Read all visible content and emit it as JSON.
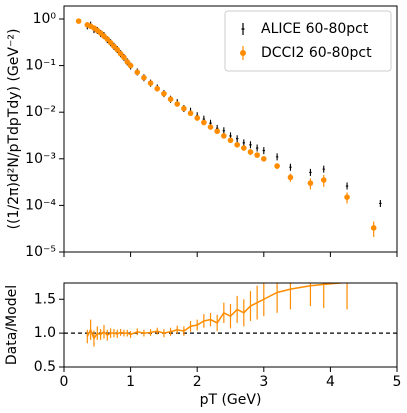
{
  "chart_data": [
    {
      "type": "scatter",
      "ylabel": "((1/2π)d²N/pTdpTdy) (GeV⁻²)",
      "log_y": true,
      "legend": "upper right",
      "xlim": [
        0,
        5
      ],
      "xticks": [
        0,
        1,
        2,
        3,
        4,
        5
      ],
      "ylim": [
        1e-05,
        1.9
      ],
      "yticks": [
        {
          "value": 1e-05,
          "label": "10⁻⁵"
        },
        {
          "value": 0.0001,
          "label": "10⁻⁴"
        },
        {
          "value": 0.001,
          "label": "10⁻³"
        },
        {
          "value": 0.01,
          "label": "10⁻²"
        },
        {
          "value": 0.1,
          "label": "10⁻¹"
        },
        {
          "value": 1,
          "label": "10⁰"
        }
      ],
      "series": [
        {
          "name": "ALICE 60-80pct",
          "color": "#000000",
          "marker": "errorbar",
          "x": [
            0.35,
            0.4,
            0.45,
            0.5,
            0.55,
            0.6,
            0.65,
            0.7,
            0.75,
            0.8,
            0.85,
            0.9,
            0.95,
            1.0,
            1.1,
            1.2,
            1.3,
            1.4,
            1.5,
            1.6,
            1.7,
            1.8,
            1.9,
            2.0,
            2.1,
            2.2,
            2.3,
            2.4,
            2.5,
            2.6,
            2.7,
            2.8,
            2.9,
            3.0,
            3.2,
            3.4,
            3.7,
            3.9,
            4.25,
            4.75
          ],
          "values": [
            0.71,
            0.74,
            0.59,
            0.57,
            0.49,
            0.44,
            0.36,
            0.31,
            0.26,
            0.22,
            0.18,
            0.15,
            0.12,
            0.098,
            0.073,
            0.055,
            0.042,
            0.033,
            0.025,
            0.019,
            0.016,
            0.012,
            0.0105,
            0.0084,
            0.0071,
            0.0058,
            0.0045,
            0.004,
            0.0031,
            0.0027,
            0.0022,
            0.002,
            0.0017,
            0.0015,
            0.0011,
            0.00066,
            0.00051,
            0.0006,
            0.00026,
            0.00011
          ]
        },
        {
          "name": "DCCI2 60-80pct",
          "color": "#ff8c00",
          "marker": "circle",
          "x": [
            0.22,
            0.35,
            0.4,
            0.45,
            0.5,
            0.55,
            0.6,
            0.65,
            0.7,
            0.75,
            0.8,
            0.85,
            0.9,
            0.95,
            1.0,
            1.1,
            1.2,
            1.3,
            1.4,
            1.5,
            1.6,
            1.7,
            1.8,
            1.9,
            2.0,
            2.1,
            2.2,
            2.3,
            2.4,
            2.5,
            2.6,
            2.7,
            2.8,
            2.9,
            3.0,
            3.2,
            3.4,
            3.7,
            3.9,
            4.25,
            4.65
          ],
          "values": [
            0.9,
            0.75,
            0.7,
            0.64,
            0.57,
            0.5,
            0.43,
            0.37,
            0.31,
            0.26,
            0.22,
            0.18,
            0.15,
            0.12,
            0.1,
            0.072,
            0.055,
            0.042,
            0.032,
            0.025,
            0.019,
            0.015,
            0.012,
            0.0095,
            0.0075,
            0.006,
            0.0048,
            0.0039,
            0.0031,
            0.0025,
            0.002,
            0.0017,
            0.0014,
            0.0012,
            0.001,
            0.0007,
            0.0004,
            0.0003,
            0.00035,
            0.00015,
            3.3e-05
          ],
          "errors": [
            0.1,
            0.05,
            0.04,
            0.03,
            0.03,
            0.02,
            0.02,
            0.02,
            0.01,
            0.01,
            0.01,
            0.01,
            0.01,
            0.01,
            0.005,
            0.004,
            0.003,
            0.002,
            0.002,
            0.002,
            0.001,
            0.001,
            0.001,
            0.001,
            0.0008,
            0.0006,
            0.0005,
            0.0004,
            0.0003,
            0.0003,
            0.0002,
            0.0002,
            0.0002,
            0.0001,
            0.0001,
            0.0001,
            8e-05,
            8e-05,
            0.0001,
            4e-05,
            1.2e-05
          ]
        }
      ]
    },
    {
      "type": "line",
      "ylabel": "Data/Model",
      "xlabel": "pT (GeV)",
      "xlim": [
        0,
        5
      ],
      "xticks": [
        0,
        1,
        2,
        3,
        4,
        5
      ],
      "ylim": [
        0.5,
        1.74
      ],
      "yticks": [
        0.5,
        {
          "value": 1,
          "label": "1.0"
        },
        1.5
      ],
      "reference_line": 1,
      "series": [
        {
          "color": "#ff8c00",
          "x": [
            0.35,
            0.4,
            0.45,
            0.5,
            0.55,
            0.6,
            0.65,
            0.7,
            0.75,
            0.8,
            0.85,
            0.9,
            0.95,
            1.0,
            1.1,
            1.2,
            1.3,
            1.4,
            1.5,
            1.6,
            1.7,
            1.8,
            1.9,
            2.0,
            2.1,
            2.2,
            2.3,
            2.4,
            2.5,
            2.6,
            2.7,
            2.8,
            2.9,
            3.0,
            3.2,
            3.4,
            3.7,
            3.9,
            4.25
          ],
          "values": [
            0.95,
            1.05,
            0.92,
            1.0,
            0.98,
            1.02,
            0.97,
            1.0,
            1.0,
            0.99,
            1.01,
            1.0,
            1.0,
            0.98,
            1.02,
            1.0,
            1.01,
            1.03,
            1.0,
            1.02,
            1.05,
            1.03,
            1.1,
            1.12,
            1.18,
            1.2,
            1.15,
            1.3,
            1.25,
            1.35,
            1.3,
            1.4,
            1.45,
            1.5,
            1.6,
            1.65,
            1.7,
            1.72,
            1.75
          ],
          "errors": [
            0.1,
            0.15,
            0.12,
            0.1,
            0.08,
            0.1,
            0.08,
            0.07,
            0.06,
            0.06,
            0.05,
            0.05,
            0.05,
            0.05,
            0.05,
            0.05,
            0.05,
            0.05,
            0.06,
            0.06,
            0.06,
            0.07,
            0.08,
            0.08,
            0.1,
            0.1,
            0.12,
            0.15,
            0.18,
            0.2,
            0.2,
            0.22,
            0.25,
            0.25,
            0.3,
            0.3,
            0.3,
            0.35,
            0.4
          ]
        }
      ]
    }
  ]
}
